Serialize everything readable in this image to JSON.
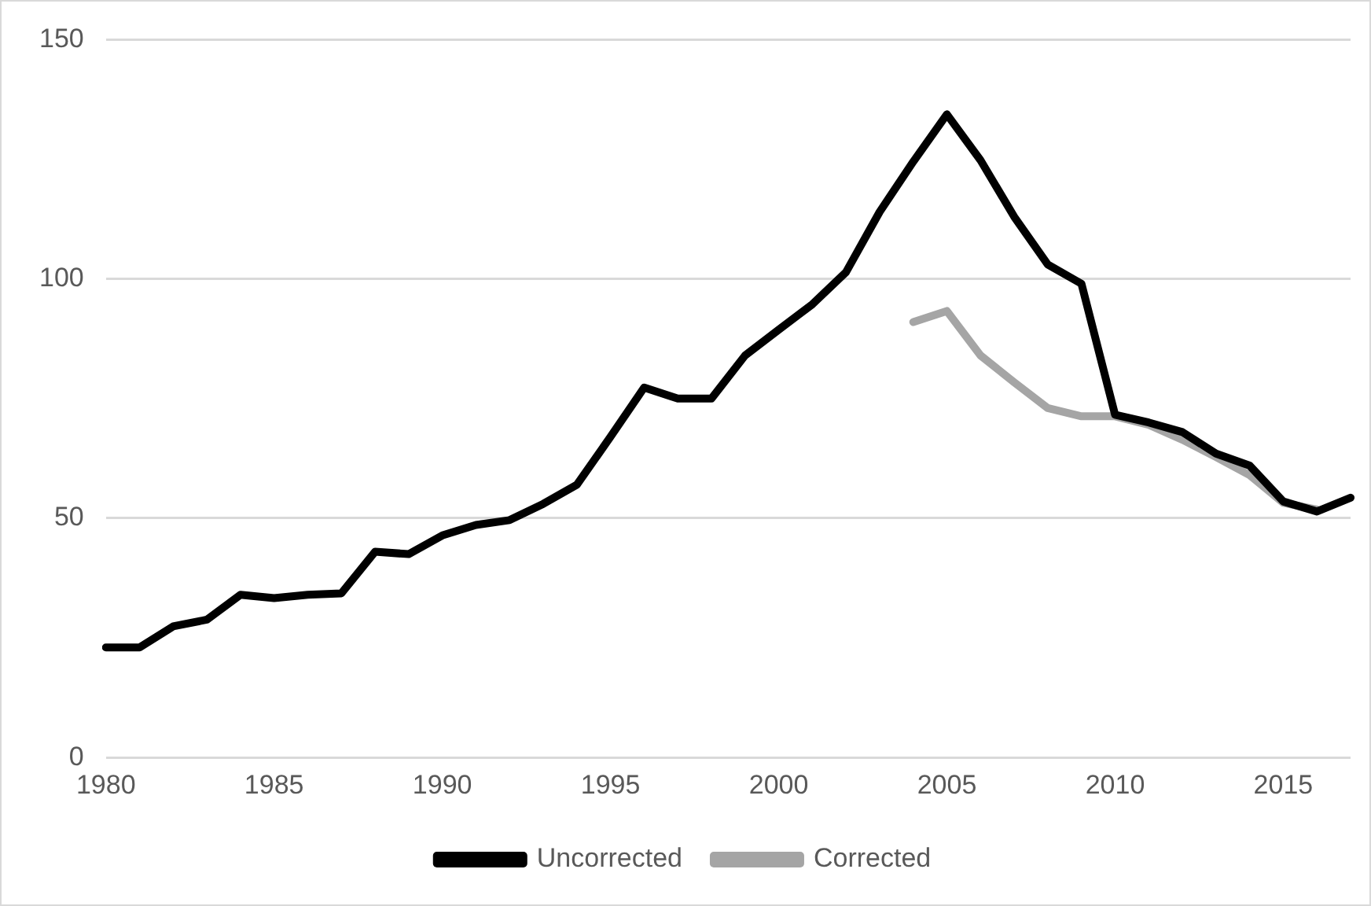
{
  "chart_data": {
    "type": "line",
    "categories": [
      "1980",
      null,
      null,
      null,
      null,
      "1985",
      null,
      null,
      null,
      null,
      "1990",
      null,
      null,
      null,
      null,
      "1995",
      null,
      null,
      null,
      null,
      "2000",
      null,
      null,
      null,
      null,
      "2005",
      null,
      null,
      null,
      null,
      "2010",
      null,
      null,
      null,
      null,
      "2015",
      null,
      null
    ],
    "series": [
      {
        "name": "Uncorrected",
        "color": "#000000",
        "values": [
          23,
          23,
          27.4,
          28.8,
          34,
          33.3,
          34,
          34.3,
          43,
          42.5,
          46.4,
          48.6,
          49.6,
          53,
          57,
          67,
          77.3,
          75,
          75,
          84,
          89.4,
          94.7,
          101.4,
          114,
          124.5,
          134.4,
          124.8,
          113,
          103,
          99,
          71.6,
          70,
          68,
          63.5,
          61,
          53.5,
          51.4,
          54.3
        ]
      },
      {
        "name": "Corrected",
        "color": "#a5a5a5",
        "values": [
          null,
          null,
          null,
          null,
          null,
          null,
          null,
          null,
          null,
          null,
          null,
          null,
          null,
          null,
          null,
          null,
          null,
          null,
          null,
          null,
          null,
          null,
          null,
          null,
          91,
          93.3,
          84,
          78.4,
          73,
          71.3,
          71.3,
          69.5,
          66.4,
          62.8,
          59,
          53.2,
          51.8,
          null
        ]
      }
    ],
    "ylim": [
      0,
      150
    ],
    "yticks": [
      0,
      50,
      100,
      150
    ],
    "grid": "y",
    "legend": "bottom",
    "marker": "none",
    "line_style": "solid"
  }
}
